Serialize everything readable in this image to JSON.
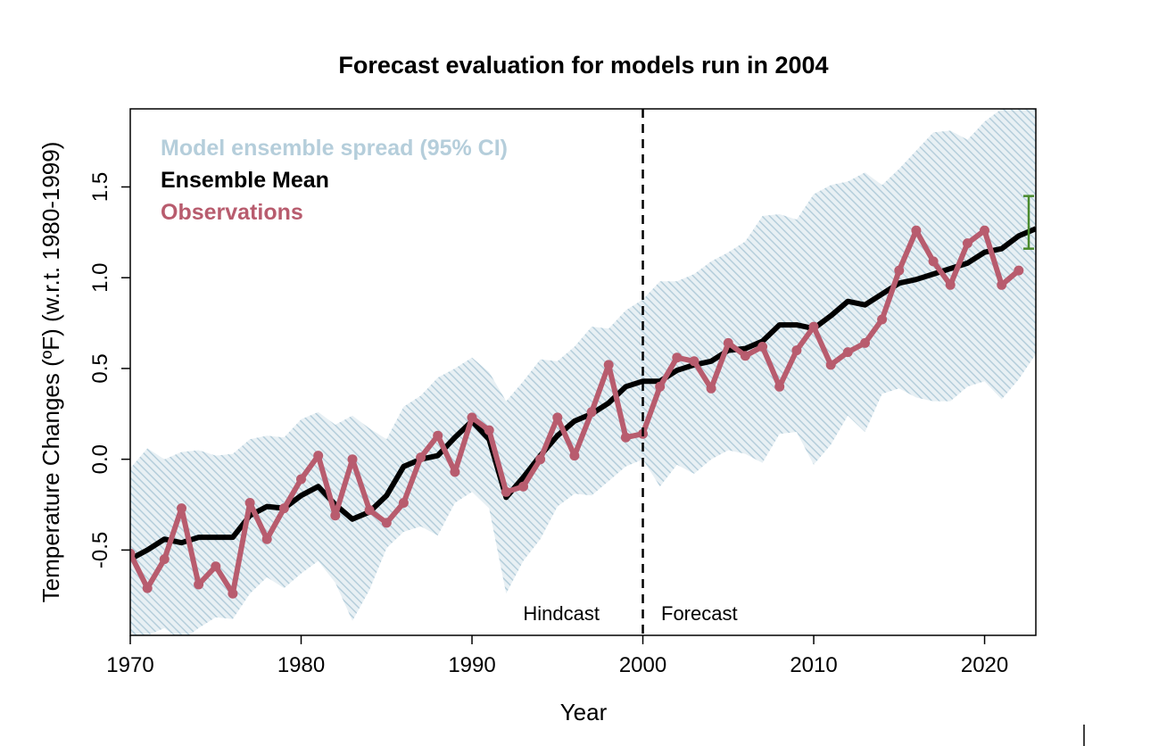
{
  "chart_data": {
    "type": "line",
    "title": "Forecast evaluation for models run in 2004",
    "xlabel": "Year",
    "ylabel": "Temperature Changes (ºF) (w.r.t. 1980-1999)",
    "xlim": [
      1970,
      2023
    ],
    "ylim": [
      -0.97,
      1.93
    ],
    "x_ticks": [
      1970,
      1980,
      1990,
      2000,
      2010,
      2020
    ],
    "y_ticks": [
      -0.5,
      0.0,
      0.5,
      1.0,
      1.5
    ],
    "x_tick_labels": [
      "1970",
      "1980",
      "1990",
      "2000",
      "2010",
      "2020"
    ],
    "y_tick_labels": [
      "-0.5",
      "0.0",
      "0.5",
      "1.0",
      "1.5"
    ],
    "legend": {
      "placement": "top-left",
      "entries": [
        {
          "label": "Model ensemble spread (95% CI)",
          "color": "#b5cedb"
        },
        {
          "label": "Ensemble Mean",
          "color": "#000000"
        },
        {
          "label": "Observations",
          "color": "#b85c6e"
        }
      ]
    },
    "divider": {
      "x": 2000,
      "style": "dashed"
    },
    "annotations": {
      "hindcast": "Hindcast",
      "forecast": "Forecast"
    },
    "years": [
      1970,
      1971,
      1972,
      1973,
      1974,
      1975,
      1976,
      1977,
      1978,
      1979,
      1980,
      1981,
      1982,
      1983,
      1984,
      1985,
      1986,
      1987,
      1988,
      1989,
      1990,
      1991,
      1992,
      1993,
      1994,
      1995,
      1996,
      1997,
      1998,
      1999,
      2000,
      2001,
      2002,
      2003,
      2004,
      2005,
      2006,
      2007,
      2008,
      2009,
      2010,
      2011,
      2012,
      2013,
      2014,
      2015,
      2016,
      2017,
      2018,
      2019,
      2020,
      2021,
      2022,
      2023
    ],
    "series": [
      {
        "name": "Observations",
        "color": "#b85c6e",
        "x": [
          1970,
          1971,
          1972,
          1973,
          1974,
          1975,
          1976,
          1977,
          1978,
          1979,
          1980,
          1981,
          1982,
          1983,
          1984,
          1985,
          1986,
          1987,
          1988,
          1989,
          1990,
          1991,
          1992,
          1993,
          1994,
          1995,
          1996,
          1997,
          1998,
          1999,
          2000,
          2001,
          2002,
          2003,
          2004,
          2005,
          2006,
          2007,
          2008,
          2009,
          2010,
          2011,
          2012,
          2013,
          2014,
          2015,
          2016,
          2017,
          2018,
          2019,
          2020,
          2021,
          2022
        ],
        "values": [
          -0.52,
          -0.71,
          -0.55,
          -0.27,
          -0.69,
          -0.59,
          -0.74,
          -0.24,
          -0.44,
          -0.27,
          -0.11,
          0.02,
          -0.31,
          0.0,
          -0.28,
          -0.35,
          -0.24,
          0.01,
          0.13,
          -0.07,
          0.23,
          0.16,
          -0.18,
          -0.15,
          0.0,
          0.23,
          0.02,
          0.26,
          0.52,
          0.12,
          0.14,
          0.4,
          0.56,
          0.54,
          0.39,
          0.64,
          0.57,
          0.62,
          0.4,
          0.6,
          0.73,
          0.52,
          0.59,
          0.64,
          0.77,
          1.04,
          1.26,
          1.09,
          0.96,
          1.19,
          1.26,
          0.96,
          1.04
        ]
      },
      {
        "name": "Ensemble Mean",
        "color": "#000000",
        "x": [
          1970,
          1971,
          1972,
          1973,
          1974,
          1975,
          1976,
          1977,
          1978,
          1979,
          1980,
          1981,
          1982,
          1983,
          1984,
          1985,
          1986,
          1987,
          1988,
          1989,
          1990,
          1991,
          1992,
          1993,
          1994,
          1995,
          1996,
          1997,
          1998,
          1999,
          2000,
          2001,
          2002,
          2003,
          2004,
          2005,
          2006,
          2007,
          2008,
          2009,
          2010,
          2011,
          2012,
          2013,
          2014,
          2015,
          2016,
          2017,
          2018,
          2019,
          2020,
          2021,
          2022,
          2023
        ],
        "values": [
          -0.55,
          -0.5,
          -0.44,
          -0.46,
          -0.43,
          -0.43,
          -0.43,
          -0.31,
          -0.26,
          -0.27,
          -0.2,
          -0.15,
          -0.25,
          -0.33,
          -0.29,
          -0.2,
          -0.04,
          0.0,
          0.02,
          0.12,
          0.21,
          0.11,
          -0.21,
          -0.1,
          0.02,
          0.13,
          0.21,
          0.25,
          0.31,
          0.4,
          0.43,
          0.43,
          0.49,
          0.52,
          0.54,
          0.6,
          0.61,
          0.65,
          0.74,
          0.74,
          0.72,
          0.79,
          0.87,
          0.85,
          0.91,
          0.97,
          0.99,
          1.02,
          1.05,
          1.08,
          1.14,
          1.16,
          1.23,
          1.27
        ]
      },
      {
        "name": "Model ensemble spread (95% CI) upper",
        "values": [
          -0.05,
          0.06,
          0.0,
          0.04,
          0.05,
          0.02,
          0.03,
          0.11,
          0.13,
          0.12,
          0.22,
          0.26,
          0.19,
          0.24,
          0.17,
          0.11,
          0.29,
          0.35,
          0.45,
          0.5,
          0.56,
          0.48,
          0.32,
          0.43,
          0.55,
          0.54,
          0.62,
          0.73,
          0.72,
          0.82,
          0.88,
          0.98,
          0.98,
          1.02,
          1.09,
          1.14,
          1.2,
          1.34,
          1.35,
          1.32,
          1.46,
          1.51,
          1.53,
          1.58,
          1.51,
          1.6,
          1.7,
          1.8,
          1.81,
          1.76,
          1.86,
          1.93,
          1.96,
          1.93
        ]
      },
      {
        "name": "Model ensemble spread (95% CI) lower",
        "values": [
          -1.0,
          -0.97,
          -0.93,
          -1.0,
          -0.93,
          -0.87,
          -0.88,
          -0.74,
          -0.65,
          -0.71,
          -0.63,
          -0.56,
          -0.68,
          -0.89,
          -0.72,
          -0.49,
          -0.4,
          -0.37,
          -0.42,
          -0.24,
          -0.18,
          -0.27,
          -0.74,
          -0.56,
          -0.44,
          -0.26,
          -0.19,
          -0.2,
          -0.12,
          -0.04,
          0.0,
          -0.15,
          -0.03,
          -0.08,
          0.0,
          0.05,
          0.03,
          -0.02,
          0.14,
          0.15,
          -0.03,
          0.08,
          0.24,
          0.15,
          0.36,
          0.39,
          0.34,
          0.32,
          0.32,
          0.4,
          0.43,
          0.33,
          0.44,
          0.58
        ]
      }
    ],
    "error_bar": {
      "x": 2023,
      "low": 1.16,
      "high": 1.45,
      "color": "#4a8a2e"
    }
  }
}
